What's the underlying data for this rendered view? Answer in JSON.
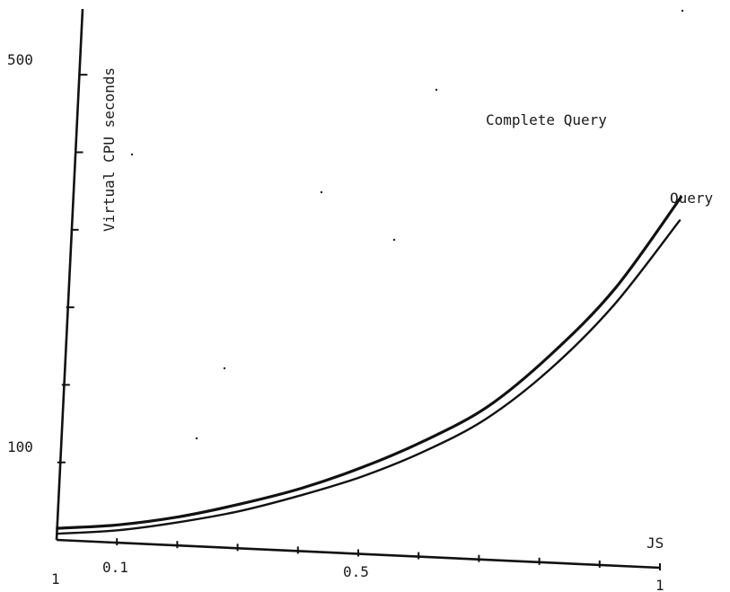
{
  "chart_data": {
    "type": "line",
    "title": "",
    "xlabel": "JS",
    "ylabel": "Virtual CPU seconds",
    "x_tick_labels": [
      "1",
      "0.1",
      "0.5",
      "1"
    ],
    "y_tick_labels": [
      "500",
      "100"
    ],
    "xlim": [
      0,
      1
    ],
    "ylim": [
      0,
      600
    ],
    "grid": false,
    "legend": "none",
    "series": [
      {
        "name": "Complete Query",
        "x": [
          0,
          0.1,
          0.2,
          0.3,
          0.4,
          0.5,
          0.6,
          0.7,
          0.8,
          0.9,
          1.0
        ],
        "y": [
          15,
          23,
          37,
          57,
          81,
          112,
          150,
          197,
          268,
          357,
          478
        ]
      },
      {
        "name": "Query",
        "x": [
          0,
          0.1,
          0.2,
          0.3,
          0.4,
          0.5,
          0.6,
          0.7,
          0.8,
          0.9,
          1.0
        ],
        "y": [
          8,
          16,
          30,
          48,
          72,
          100,
          136,
          182,
          249,
          336,
          448
        ]
      }
    ]
  },
  "colors": {
    "ink": "#111111",
    "background": "#ffffff"
  }
}
